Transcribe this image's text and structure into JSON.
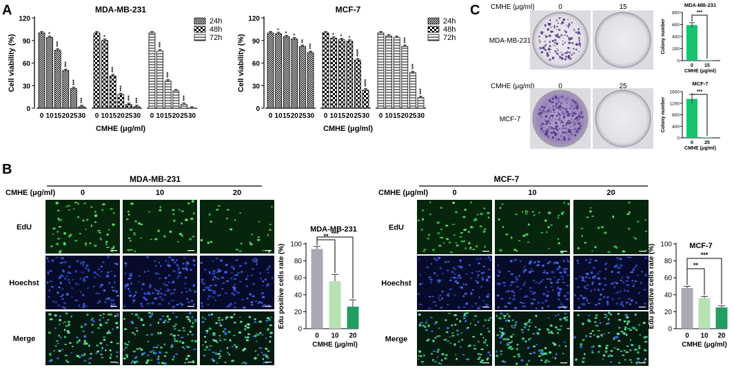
{
  "panel_labels": [
    "A",
    "B",
    "C"
  ],
  "common": {
    "cmhe_axis_label": "CMHE (μg/ml)",
    "cmhe_row_label": "CMHE (μg/ml)",
    "legend_times": [
      "24h",
      "48h",
      "72h"
    ],
    "cell_lines": [
      "MDA-MB-231",
      "MCF-7"
    ],
    "colors": {
      "gray_bar": "#a9a8b4",
      "light_green_bar": "#b7e3b3",
      "dark_green_bar": "#229e60",
      "colony_green": "#18c36f",
      "plate_purple": "#7c5aa2"
    }
  },
  "panel_a": {
    "charts": [
      {
        "title": "MDA-MB-231",
        "ylabel": "Cell viability (%)",
        "xlabel": "CMHE (μg/ml)",
        "concentrations": [
          "0",
          "10",
          "15",
          "20",
          "25",
          "30"
        ],
        "ylim": [
          0,
          120
        ],
        "yticks": [
          "0",
          "30",
          "60",
          "90",
          "120"
        ],
        "series": [
          {
            "name": "24h",
            "values": [
              100,
              94,
              77,
              50,
              26,
              2
            ],
            "sig": [
              "",
              "*",
              "***",
              "***",
              "***",
              "***"
            ]
          },
          {
            "name": "48h",
            "values": [
              100,
              90,
              43,
              18,
              5,
              2
            ],
            "sig": [
              "",
              "*",
              "***",
              "***",
              "***",
              "***"
            ]
          },
          {
            "name": "72h",
            "values": [
              100,
              76,
              36,
              23,
              5,
              0
            ],
            "sig": [
              "",
              "***",
              "***",
              "",
              "***",
              ""
            ]
          }
        ]
      },
      {
        "title": "MCF-7",
        "ylabel": "Cell viability (%)",
        "xlabel": "CMHE (μg/ml)",
        "concentrations": [
          "0",
          "10",
          "15",
          "20",
          "25",
          "30"
        ],
        "ylim": [
          0,
          120
        ],
        "yticks": [
          "0",
          "30",
          "60",
          "90",
          "120"
        ],
        "series": [
          {
            "name": "24h",
            "values": [
              100,
              99,
              95,
              92,
              82,
              74
            ],
            "sig": [
              "",
              "*",
              "*",
              "*",
              "**",
              "***"
            ]
          },
          {
            "name": "48h",
            "values": [
              100,
              93,
              91,
              89,
              64,
              24
            ],
            "sig": [
              "",
              "*",
              "*",
              "*",
              "****",
              "****"
            ]
          },
          {
            "name": "72h",
            "values": [
              100,
              96,
              94,
              82,
              47,
              14
            ],
            "sig": [
              "",
              "",
              "",
              "***",
              "***",
              "***"
            ]
          }
        ]
      }
    ]
  },
  "panel_b": {
    "groups": [
      {
        "title": "MDA-MB-231",
        "concentrations": [
          "0",
          "10",
          "20"
        ],
        "rows": [
          "EdU",
          "Hoechst",
          "Merge"
        ],
        "chart": {
          "type": "bar",
          "title": "MDA-MB-231",
          "ylabel": "Edu positive cells rate (%)",
          "xlabel": "CMHE (μg/ml)",
          "categories": [
            "0",
            "10",
            "20"
          ],
          "values": [
            94,
            56,
            26
          ],
          "errors": [
            3,
            8,
            8
          ],
          "ylim": [
            0,
            100
          ],
          "yticks": [
            "0",
            "20",
            "40",
            "60",
            "80",
            "100"
          ],
          "comparisons": [
            {
              "from": "0",
              "to": "10",
              "label": "**"
            },
            {
              "from": "0",
              "to": "20",
              "label": "***"
            }
          ]
        }
      },
      {
        "title": "MCF-7",
        "concentrations": [
          "0",
          "10",
          "20"
        ],
        "rows": [
          "EdU",
          "Hoechst",
          "Merge"
        ],
        "chart": {
          "type": "bar",
          "title": "MCF-7",
          "ylabel": "Edu positive cells rate (%)",
          "xlabel": "CMHE (μg/ml)",
          "categories": [
            "0",
            "10",
            "20"
          ],
          "values": [
            48,
            36,
            25
          ],
          "errors": [
            2,
            2,
            2
          ],
          "ylim": [
            0,
            100
          ],
          "yticks": [
            "0",
            "20",
            "40",
            "60",
            "80",
            "100"
          ],
          "comparisons": [
            {
              "from": "0",
              "to": "10",
              "label": "**"
            },
            {
              "from": "0",
              "to": "20",
              "label": "***"
            }
          ]
        }
      }
    ]
  },
  "panel_c": {
    "rows": [
      {
        "cell_line": "MDA-MB-231",
        "concentrations": [
          "0",
          "15"
        ],
        "chart": {
          "type": "bar",
          "title": "MDA-MB-231",
          "ylabel": "Colony number",
          "xlabel": "CMHE (μg/ml)",
          "categories": [
            "0",
            "15"
          ],
          "values": [
            590,
            5
          ],
          "errors": [
            40,
            0
          ],
          "ylim": [
            0,
            800
          ],
          "yticks": [
            "0",
            "200",
            "400",
            "600",
            "800"
          ],
          "sig": "***"
        }
      },
      {
        "cell_line": "MCF-7",
        "concentrations": [
          "0",
          "25"
        ],
        "chart": {
          "type": "bar",
          "title": "MCF-7",
          "ylabel": "Colony number",
          "xlabel": "CMHE (μg/ml)",
          "categories": [
            "0",
            "25"
          ],
          "values": [
            1350,
            15
          ],
          "errors": [
            150,
            0
          ],
          "ylim": [
            0,
            1600
          ],
          "yticks": [
            "0",
            "400",
            "800",
            "1200",
            "1600"
          ],
          "sig": "***"
        }
      }
    ]
  },
  "chart_data": [
    {
      "type": "bar",
      "title": "MDA-MB-231",
      "xlabel": "CMHE (μg/ml)",
      "ylabel": "Cell viability (%)",
      "categories": [
        "0",
        "10",
        "15",
        "20",
        "25",
        "30"
      ],
      "series": [
        {
          "name": "24h",
          "values": [
            100,
            94,
            77,
            50,
            26,
            2
          ]
        },
        {
          "name": "48h",
          "values": [
            100,
            90,
            43,
            18,
            5,
            2
          ]
        },
        {
          "name": "72h",
          "values": [
            100,
            76,
            36,
            23,
            5,
            0
          ]
        }
      ],
      "ylim": [
        0,
        120
      ]
    },
    {
      "type": "bar",
      "title": "MCF-7",
      "xlabel": "CMHE (μg/ml)",
      "ylabel": "Cell viability (%)",
      "categories": [
        "0",
        "10",
        "15",
        "20",
        "25",
        "30"
      ],
      "series": [
        {
          "name": "24h",
          "values": [
            100,
            99,
            95,
            92,
            82,
            74
          ]
        },
        {
          "name": "48h",
          "values": [
            100,
            93,
            91,
            89,
            64,
            24
          ]
        },
        {
          "name": "72h",
          "values": [
            100,
            96,
            94,
            82,
            47,
            14
          ]
        }
      ],
      "ylim": [
        0,
        120
      ]
    },
    {
      "type": "bar",
      "title": "MDA-MB-231",
      "xlabel": "CMHE (μg/ml)",
      "ylabel": "Edu positive cells rate (%)",
      "categories": [
        "0",
        "10",
        "20"
      ],
      "values": [
        94,
        56,
        26
      ],
      "ylim": [
        0,
        100
      ]
    },
    {
      "type": "bar",
      "title": "MCF-7",
      "xlabel": "CMHE (μg/ml)",
      "ylabel": "Edu positive cells rate (%)",
      "categories": [
        "0",
        "10",
        "20"
      ],
      "values": [
        48,
        36,
        25
      ],
      "ylim": [
        0,
        100
      ]
    },
    {
      "type": "bar",
      "title": "MDA-MB-231",
      "xlabel": "CMHE (μg/ml)",
      "ylabel": "Colony number",
      "categories": [
        "0",
        "15"
      ],
      "values": [
        590,
        5
      ],
      "ylim": [
        0,
        800
      ]
    },
    {
      "type": "bar",
      "title": "MCF-7",
      "xlabel": "CMHE (μg/ml)",
      "ylabel": "Colony number",
      "categories": [
        "0",
        "25"
      ],
      "values": [
        1350,
        15
      ],
      "ylim": [
        0,
        1600
      ]
    }
  ]
}
